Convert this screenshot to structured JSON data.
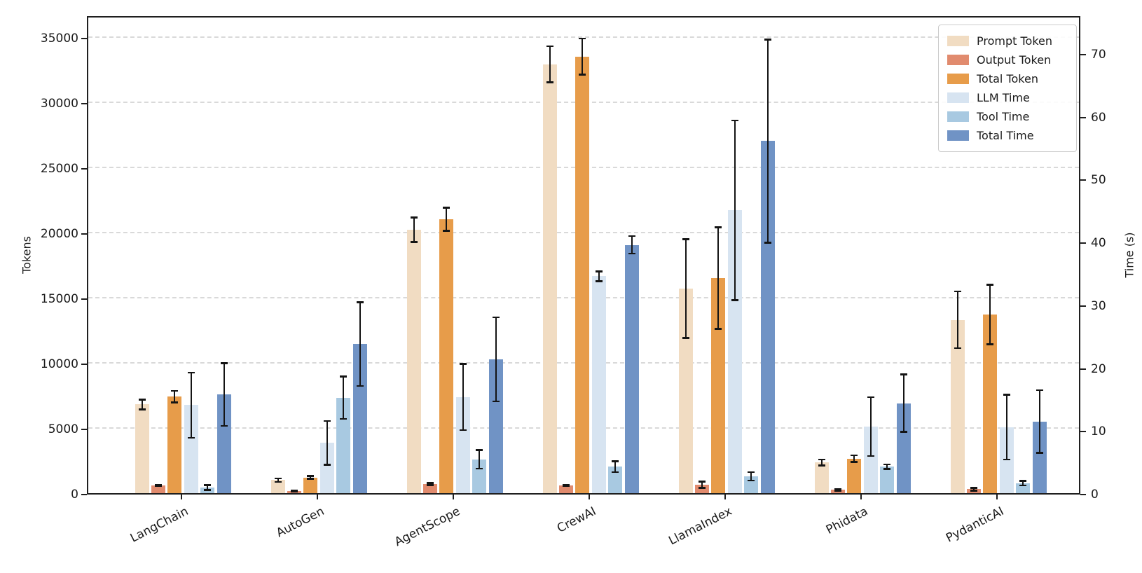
{
  "chart_data": {
    "type": "bar",
    "title": "",
    "categories": [
      "LangChain",
      "AutoGen",
      "AgentScope",
      "CrewAI",
      "LlamaIndex",
      "Phidata",
      "PydanticAI"
    ],
    "series": [
      {
        "name": "Prompt Token",
        "axis": "left",
        "color": "#f1dcc2",
        "values": [
          6800,
          1000,
          20200,
          32900,
          15700,
          2350,
          13300
        ],
        "errors": [
          400,
          150,
          950,
          1400,
          3800,
          250,
          2200
        ]
      },
      {
        "name": "Output Token",
        "axis": "left",
        "color": "#e18b6e",
        "values": [
          600,
          150,
          700,
          600,
          650,
          250,
          300
        ],
        "errors": [
          70,
          50,
          90,
          70,
          250,
          60,
          120
        ]
      },
      {
        "name": "Total Token",
        "axis": "left",
        "color": "#e79c4a",
        "values": [
          7400,
          1200,
          21000,
          33500,
          16500,
          2650,
          13700
        ],
        "errors": [
          450,
          120,
          900,
          1400,
          3900,
          280,
          2300
        ]
      },
      {
        "name": "LLM Time",
        "axis": "right",
        "color": "#d7e4f1",
        "values": [
          14.0,
          8.0,
          15.3,
          34.5,
          45.0,
          10.6,
          10.5
        ],
        "errors": [
          5.2,
          3.5,
          5.3,
          0.8,
          14.3,
          4.7,
          5.2
        ]
      },
      {
        "name": "Tool Time",
        "axis": "right",
        "color": "#a8c9e1",
        "values": [
          0.9,
          15.2,
          5.4,
          4.2,
          2.7,
          4.2,
          1.6
        ],
        "errors": [
          0.4,
          3.4,
          1.5,
          0.9,
          0.7,
          0.4,
          0.4
        ]
      },
      {
        "name": "Total Time",
        "axis": "right",
        "color": "#7093c5",
        "values": [
          15.7,
          23.7,
          21.3,
          39.5,
          56.0,
          14.3,
          11.4
        ],
        "errors": [
          5.0,
          6.7,
          6.7,
          1.4,
          16.2,
          4.6,
          5.0
        ]
      }
    ],
    "ylabel_left": "Tokens",
    "ylabel_right": "Time (s)",
    "left_ticks": [
      0,
      5000,
      10000,
      15000,
      20000,
      25000,
      30000,
      35000
    ],
    "right_ticks": [
      0,
      10,
      20,
      30,
      40,
      50,
      60,
      70
    ],
    "ylim_left": [
      0,
      36700
    ],
    "ylim_right": [
      0,
      76.1
    ],
    "grid": "horizontal dashed",
    "legend_position": "upper right",
    "error_bar_color": "#141414"
  }
}
